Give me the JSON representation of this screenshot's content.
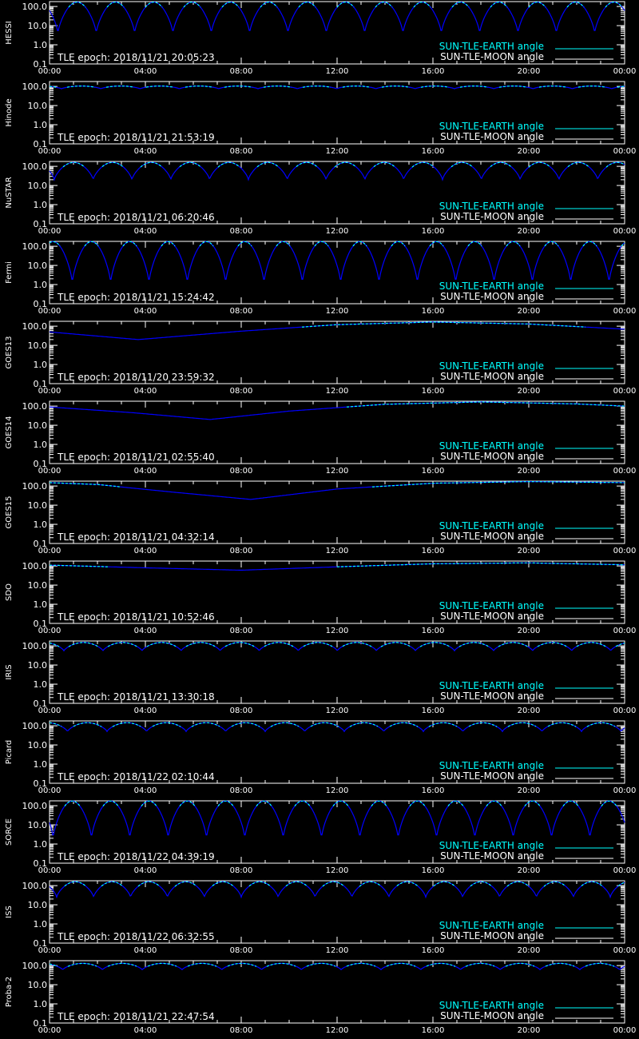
{
  "colors": {
    "background": "#000000",
    "axes": "#ffffff",
    "earth_angle": "#00ffff",
    "moon_angle": "#ffffff",
    "curve_shade": "#0000ff"
  },
  "legend": {
    "earth_label": "SUN-TLE-EARTH angle",
    "moon_label": "SUN-TLE-MOON angle"
  },
  "x_tick_labels": [
    "00:00",
    "04:00",
    "08:00",
    "12:00",
    "16:00",
    "20:00",
    "00:00"
  ],
  "y_tick_labels": [
    "100.0",
    "10.0",
    "1.0",
    "0.1"
  ],
  "chart_data": [
    {
      "type": "line",
      "ylabel": "HESSI",
      "epoch": "TLE epoch: 2018/11/21 20:05:23",
      "yscale": "log",
      "ylim": [
        0.1,
        180
      ],
      "xlim": [
        0,
        24
      ],
      "curve": {
        "kind": "periodic",
        "period_h": 1.6,
        "min": 4,
        "max": 170,
        "phase_h": 0.35
      }
    },
    {
      "type": "line",
      "ylabel": "Hinode",
      "epoch": "TLE epoch: 2018/11/21 21:53:19",
      "yscale": "log",
      "ylim": [
        0.1,
        180
      ],
      "xlim": [
        0,
        24
      ],
      "curve": {
        "kind": "periodic",
        "period_h": 1.64,
        "min": 75,
        "max": 105,
        "phase_h": 0.5
      }
    },
    {
      "type": "line",
      "ylabel": "NuSTAR",
      "epoch": "TLE epoch: 2018/11/21 06:20:46",
      "yscale": "log",
      "ylim": [
        0.1,
        180
      ],
      "xlim": [
        0,
        24
      ],
      "curve": {
        "kind": "periodic",
        "period_h": 1.62,
        "min": 20,
        "max": 160,
        "phase_h": 0.2
      }
    },
    {
      "type": "line",
      "ylabel": "Fermi",
      "epoch": "TLE epoch: 2018/11/21 15:24:42",
      "yscale": "log",
      "ylim": [
        0.1,
        180
      ],
      "xlim": [
        0,
        24
      ],
      "curve": {
        "kind": "periodic",
        "period_h": 1.6,
        "min": 1.2,
        "max": 175,
        "phase_h": 0.95
      }
    },
    {
      "type": "line",
      "ylabel": "GOES13",
      "epoch": "TLE epoch: 2018/11/20 23:59:32",
      "yscale": "log",
      "ylim": [
        0.1,
        180
      ],
      "xlim": [
        0,
        24
      ],
      "curve": {
        "kind": "points",
        "points": [
          [
            0,
            50
          ],
          [
            3.7,
            20
          ],
          [
            8,
            55
          ],
          [
            12,
            120
          ],
          [
            16,
            165
          ],
          [
            20,
            130
          ],
          [
            24,
            70
          ]
        ]
      }
    },
    {
      "type": "line",
      "ylabel": "GOES14",
      "epoch": "TLE epoch: 2018/11/21 02:55:40",
      "yscale": "log",
      "ylim": [
        0.1,
        180
      ],
      "xlim": [
        0,
        24
      ],
      "curve": {
        "kind": "points",
        "points": [
          [
            0,
            90
          ],
          [
            3.5,
            45
          ],
          [
            6.7,
            20
          ],
          [
            10,
            55
          ],
          [
            14,
            125
          ],
          [
            18,
            165
          ],
          [
            22,
            130
          ],
          [
            24,
            100
          ]
        ]
      }
    },
    {
      "type": "line",
      "ylabel": "GOES15",
      "epoch": "TLE epoch: 2018/11/21 04:32:14",
      "yscale": "log",
      "ylim": [
        0.1,
        180
      ],
      "xlim": [
        0,
        24
      ],
      "curve": {
        "kind": "points",
        "points": [
          [
            0,
            150
          ],
          [
            2,
            120
          ],
          [
            5,
            50
          ],
          [
            8.4,
            20
          ],
          [
            12,
            70
          ],
          [
            16,
            140
          ],
          [
            20,
            170
          ],
          [
            24,
            150
          ]
        ]
      }
    },
    {
      "type": "line",
      "ylabel": "SDO",
      "epoch": "TLE epoch: 2018/11/21 10:52:46",
      "yscale": "log",
      "ylim": [
        0.1,
        180
      ],
      "xlim": [
        0,
        24
      ],
      "curve": {
        "kind": "points",
        "points": [
          [
            0,
            110
          ],
          [
            4,
            80
          ],
          [
            8,
            60
          ],
          [
            12,
            90
          ],
          [
            16,
            130
          ],
          [
            20,
            145
          ],
          [
            24,
            115
          ]
        ]
      }
    },
    {
      "type": "line",
      "ylabel": "IRIS",
      "epoch": "TLE epoch: 2018/11/21 13:30:18",
      "yscale": "log",
      "ylim": [
        0.1,
        180
      ],
      "xlim": [
        0,
        24
      ],
      "curve": {
        "kind": "periodic",
        "period_h": 1.63,
        "min": 55,
        "max": 150,
        "phase_h": 0.6
      }
    },
    {
      "type": "line",
      "ylabel": "Picard",
      "epoch": "TLE epoch: 2018/11/22 02:10:44",
      "yscale": "log",
      "ylim": [
        0.1,
        180
      ],
      "xlim": [
        0,
        24
      ],
      "curve": {
        "kind": "periodic",
        "period_h": 1.65,
        "min": 50,
        "max": 145,
        "phase_h": 0.75
      }
    },
    {
      "type": "line",
      "ylabel": "SORCE",
      "epoch": "TLE epoch: 2018/11/22 04:39:19",
      "yscale": "log",
      "ylim": [
        0.1,
        180
      ],
      "xlim": [
        0,
        24
      ],
      "curve": {
        "kind": "periodic",
        "period_h": 1.6,
        "min": 2,
        "max": 175,
        "phase_h": 0.15
      }
    },
    {
      "type": "line",
      "ylabel": "ISS",
      "epoch": "TLE epoch: 2018/11/22 06:32:55",
      "yscale": "log",
      "ylim": [
        0.1,
        180
      ],
      "xlim": [
        0,
        24
      ],
      "curve": {
        "kind": "periodic",
        "period_h": 1.54,
        "min": 25,
        "max": 160,
        "phase_h": 0.3
      }
    },
    {
      "type": "line",
      "ylabel": "Proba-2",
      "epoch": "TLE epoch: 2018/11/21 22:47:54",
      "yscale": "log",
      "ylim": [
        0.1,
        180
      ],
      "xlim": [
        0,
        24
      ],
      "curve": {
        "kind": "periodic",
        "period_h": 1.66,
        "min": 60,
        "max": 130,
        "phase_h": 0.55
      }
    }
  ]
}
